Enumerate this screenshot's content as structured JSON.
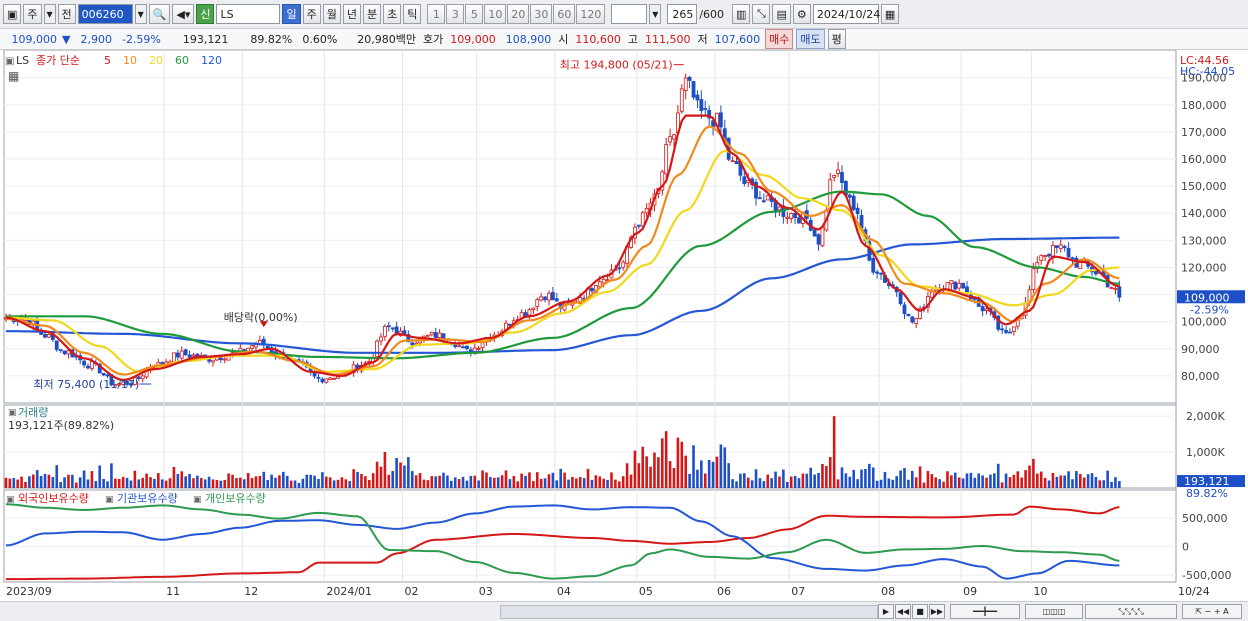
{
  "toolbar": {
    "period_selected": "주",
    "prev_label": "전",
    "code_value": "006260",
    "stock_badge": "신",
    "stock_name": "LS",
    "intervals": [
      "일",
      "주",
      "월",
      "년",
      "분",
      "초",
      "틱"
    ],
    "active_interval": "일",
    "minute_options": [
      "1",
      "3",
      "5",
      "10",
      "20",
      "30",
      "60",
      "120"
    ],
    "count_value": "265",
    "count_max": "/600",
    "date_value": "2024/10/24"
  },
  "quote": {
    "price": "109,000",
    "change": "2,900",
    "change_pct": "-2.59%",
    "volume": "193,121",
    "vol_ratio": "89.82%",
    "turnover_pct": "0.60%",
    "amount": "20,980백만",
    "bid_label": "호가",
    "bid1": "109,000",
    "bid2": "108,900",
    "open_label": "시",
    "open": "110,600",
    "high_label": "고",
    "high": "111,500",
    "low_label": "저",
    "low": "107,600",
    "buy_label": "매수",
    "sell_label": "매도",
    "eval_label": "평"
  },
  "colors": {
    "up": "#d41818",
    "down": "#1d4fc7",
    "ma5": "#d41818",
    "ma10": "#f08a1c",
    "ma20": "#f1d81c",
    "ma60": "#1f9a3b",
    "ma120": "#2457d6",
    "foreign": "#d41818",
    "institution": "#2457d6",
    "individual": "#2d9a4f"
  },
  "chart_data": [
    {
      "type": "candlestick",
      "panel": "price",
      "legend": {
        "code_tag": "LS",
        "series_label": "종가 단순",
        "ma_periods": [
          "5",
          "10",
          "20",
          "60",
          "120"
        ]
      },
      "corner_labels": {
        "lc": "LC:44.56",
        "hc": "HC:-44.05"
      },
      "yticks": [
        80000,
        90000,
        100000,
        110000,
        120000,
        130000,
        140000,
        150000,
        160000,
        170000,
        180000,
        190000
      ],
      "ytick_labels": [
        "80,000",
        "90,000",
        "100,000",
        "110,000",
        "120,000",
        "130,000",
        "140,000",
        "150,000",
        "160,000",
        "170,000",
        "180,000",
        "190,000"
      ],
      "ylim": [
        70000,
        198000
      ],
      "current_price_label": "109,000",
      "current_change_label": "-2.59%",
      "current_price": 109000,
      "annotations": {
        "high": "최고 194,800 (05/21)",
        "low": "최저 75,400 (11/17)",
        "dividend": "배당락(0.00%)"
      },
      "month_ticks": [
        {
          "label": "2023/09",
          "index": 0
        },
        {
          "label": "11",
          "index": 41
        },
        {
          "label": "12",
          "index": 61
        },
        {
          "label": "2024/01",
          "index": 82
        },
        {
          "label": "02",
          "index": 102
        },
        {
          "label": "03",
          "index": 121
        },
        {
          "label": "04",
          "index": 141
        },
        {
          "label": "05",
          "index": 162
        },
        {
          "label": "06",
          "index": 182
        },
        {
          "label": "07",
          "index": 201
        },
        {
          "label": "08",
          "index": 224
        },
        {
          "label": "09",
          "index": 245
        },
        {
          "label": "10",
          "index": 263
        },
        {
          "label": "10/24",
          "index": 300
        }
      ],
      "close_anchors": [
        [
          0,
          101500
        ],
        [
          5,
          101000
        ],
        [
          10,
          95000
        ],
        [
          15,
          89000
        ],
        [
          22,
          84000
        ],
        [
          28,
          77000
        ],
        [
          32,
          77500
        ],
        [
          38,
          84000
        ],
        [
          45,
          88000
        ],
        [
          52,
          86500
        ],
        [
          58,
          88000
        ],
        [
          65,
          92000
        ],
        [
          70,
          88000
        ],
        [
          75,
          84000
        ],
        [
          80,
          79000
        ],
        [
          85,
          80000
        ],
        [
          92,
          84500
        ],
        [
          98,
          98000
        ],
        [
          104,
          93000
        ],
        [
          110,
          95000
        ],
        [
          114,
          93000
        ],
        [
          118,
          89000
        ],
        [
          125,
          95500
        ],
        [
          132,
          103000
        ],
        [
          138,
          110000
        ],
        [
          143,
          105000
        ],
        [
          148,
          110000
        ],
        [
          152,
          116000
        ],
        [
          157,
          120000
        ],
        [
          162,
          137000
        ],
        [
          166,
          145000
        ],
        [
          170,
          166000
        ],
        [
          174,
          188000
        ],
        [
          178,
          177000
        ],
        [
          182,
          174000
        ],
        [
          186,
          158000
        ],
        [
          190,
          150000
        ],
        [
          195,
          144000
        ],
        [
          200,
          140000
        ],
        [
          205,
          138000
        ],
        [
          208,
          130000
        ],
        [
          212,
          155000
        ],
        [
          217,
          143000
        ],
        [
          222,
          120000
        ],
        [
          227,
          113000
        ],
        [
          232,
          100000
        ],
        [
          238,
          113000
        ],
        [
          244,
          114000
        ],
        [
          250,
          105000
        ],
        [
          256,
          95000
        ],
        [
          260,
          104000
        ],
        [
          265,
          125000
        ],
        [
          270,
          127000
        ],
        [
          275,
          121000
        ],
        [
          280,
          118000
        ],
        [
          283,
          113000
        ],
        [
          285,
          109000
        ]
      ],
      "ma5_anchors": [
        [
          0,
          101500
        ],
        [
          10,
          96500
        ],
        [
          20,
          86500
        ],
        [
          30,
          78500
        ],
        [
          38,
          82500
        ],
        [
          50,
          87000
        ],
        [
          60,
          88000
        ],
        [
          68,
          90000
        ],
        [
          78,
          81500
        ],
        [
          86,
          80000
        ],
        [
          94,
          85000
        ],
        [
          100,
          95500
        ],
        [
          106,
          94000
        ],
        [
          116,
          92000
        ],
        [
          124,
          94000
        ],
        [
          134,
          102000
        ],
        [
          144,
          107500
        ],
        [
          154,
          117000
        ],
        [
          162,
          133000
        ],
        [
          168,
          150000
        ],
        [
          174,
          176000
        ],
        [
          180,
          176000
        ],
        [
          186,
          162000
        ],
        [
          192,
          150000
        ],
        [
          200,
          142000
        ],
        [
          208,
          134000
        ],
        [
          214,
          148000
        ],
        [
          220,
          128000
        ],
        [
          228,
          112000
        ],
        [
          234,
          104000
        ],
        [
          240,
          112000
        ],
        [
          248,
          109000
        ],
        [
          256,
          99000
        ],
        [
          262,
          104000
        ],
        [
          268,
          124000
        ],
        [
          276,
          122000
        ],
        [
          285,
          113000
        ]
      ],
      "ma10_anchors": [
        [
          0,
          101000
        ],
        [
          10,
          98500
        ],
        [
          20,
          88500
        ],
        [
          30,
          80500
        ],
        [
          40,
          84000
        ],
        [
          52,
          87000
        ],
        [
          64,
          89000
        ],
        [
          74,
          85500
        ],
        [
          84,
          80500
        ],
        [
          94,
          83500
        ],
        [
          102,
          93000
        ],
        [
          112,
          93500
        ],
        [
          122,
          92500
        ],
        [
          134,
          100500
        ],
        [
          146,
          107000
        ],
        [
          156,
          115500
        ],
        [
          164,
          128000
        ],
        [
          172,
          154000
        ],
        [
          180,
          172000
        ],
        [
          188,
          162000
        ],
        [
          196,
          148000
        ],
        [
          206,
          139000
        ],
        [
          214,
          143000
        ],
        [
          222,
          130000
        ],
        [
          230,
          114000
        ],
        [
          240,
          110500
        ],
        [
          250,
          107000
        ],
        [
          258,
          100000
        ],
        [
          266,
          114000
        ],
        [
          276,
          123000
        ],
        [
          285,
          116000
        ]
      ],
      "ma20_anchors": [
        [
          0,
          101500
        ],
        [
          12,
          100500
        ],
        [
          24,
          91000
        ],
        [
          34,
          81500
        ],
        [
          46,
          85500
        ],
        [
          58,
          87500
        ],
        [
          70,
          87500
        ],
        [
          82,
          81500
        ],
        [
          94,
          82500
        ],
        [
          106,
          91500
        ],
        [
          118,
          92000
        ],
        [
          130,
          96000
        ],
        [
          142,
          103000
        ],
        [
          154,
          111000
        ],
        [
          164,
          121000
        ],
        [
          174,
          141000
        ],
        [
          184,
          163000
        ],
        [
          194,
          154000
        ],
        [
          204,
          145500
        ],
        [
          214,
          141000
        ],
        [
          224,
          124500
        ],
        [
          234,
          113000
        ],
        [
          246,
          110500
        ],
        [
          258,
          106000
        ],
        [
          268,
          110000
        ],
        [
          278,
          119000
        ],
        [
          285,
          120000
        ]
      ],
      "ma60_anchors": [
        [
          0,
          102000
        ],
        [
          20,
          102000
        ],
        [
          40,
          95500
        ],
        [
          60,
          89000
        ],
        [
          80,
          87000
        ],
        [
          100,
          86500
        ],
        [
          120,
          88500
        ],
        [
          140,
          94000
        ],
        [
          160,
          105000
        ],
        [
          178,
          128000
        ],
        [
          196,
          140500
        ],
        [
          214,
          148000
        ],
        [
          224,
          147000
        ],
        [
          236,
          139000
        ],
        [
          248,
          127500
        ],
        [
          264,
          120000
        ],
        [
          276,
          116500
        ],
        [
          285,
          114000
        ]
      ],
      "ma120_anchors": [
        [
          0,
          96500
        ],
        [
          30,
          95500
        ],
        [
          60,
          92000
        ],
        [
          90,
          88500
        ],
        [
          110,
          88500
        ],
        [
          140,
          89500
        ],
        [
          160,
          95000
        ],
        [
          178,
          104000
        ],
        [
          196,
          116000
        ],
        [
          214,
          123000
        ],
        [
          232,
          128500
        ],
        [
          256,
          130500
        ],
        [
          285,
          131000
        ]
      ]
    },
    {
      "type": "bar",
      "panel": "volume",
      "title": "거래량",
      "current_label": "193,121주(89.82%)",
      "yticks": [
        1000000,
        2000000
      ],
      "ytick_labels": [
        "1,000K",
        "2,000K"
      ],
      "ylim": [
        0,
        2200000
      ],
      "current_value_label": "193,121",
      "current_ratio_label": "89.82%",
      "current_value": 193121
    },
    {
      "type": "line",
      "panel": "holdings",
      "series_labels": [
        "외국인보유수량",
        "기관보유수량",
        "개인보유수량"
      ],
      "yticks": [
        -500000,
        0,
        500000
      ],
      "ytick_labels": [
        "-500,000",
        "0",
        "500,000"
      ],
      "ylim": [
        -620000,
        920000
      ],
      "foreign_anchors": [
        [
          0,
          -570000
        ],
        [
          20,
          -560000
        ],
        [
          40,
          -530000
        ],
        [
          60,
          -470000
        ],
        [
          75,
          -450000
        ],
        [
          80,
          -280000
        ],
        [
          95,
          -280000
        ],
        [
          100,
          -120000
        ],
        [
          110,
          120000
        ],
        [
          130,
          220000
        ],
        [
          150,
          150000
        ],
        [
          160,
          100000
        ],
        [
          170,
          50000
        ],
        [
          180,
          80000
        ],
        [
          190,
          150000
        ],
        [
          200,
          300000
        ],
        [
          210,
          540000
        ],
        [
          220,
          520000
        ],
        [
          240,
          510000
        ],
        [
          258,
          560000
        ],
        [
          262,
          700000
        ],
        [
          270,
          650000
        ],
        [
          280,
          580000
        ],
        [
          285,
          690000
        ]
      ],
      "institution_anchors": [
        [
          0,
          20000
        ],
        [
          10,
          230000
        ],
        [
          20,
          260000
        ],
        [
          30,
          250000
        ],
        [
          40,
          120000
        ],
        [
          50,
          220000
        ],
        [
          60,
          330000
        ],
        [
          70,
          450000
        ],
        [
          80,
          460000
        ],
        [
          90,
          380000
        ],
        [
          100,
          310000
        ],
        [
          110,
          420000
        ],
        [
          120,
          580000
        ],
        [
          130,
          700000
        ],
        [
          140,
          720000
        ],
        [
          150,
          650000
        ],
        [
          160,
          690000
        ],
        [
          170,
          680000
        ],
        [
          178,
          440000
        ],
        [
          186,
          180000
        ],
        [
          196,
          -200000
        ],
        [
          210,
          -390000
        ],
        [
          220,
          -420000
        ],
        [
          230,
          -330000
        ],
        [
          240,
          -220000
        ],
        [
          250,
          -350000
        ],
        [
          256,
          -560000
        ],
        [
          264,
          -470000
        ],
        [
          272,
          -250000
        ],
        [
          285,
          -330000
        ]
      ],
      "individual_anchors": [
        [
          0,
          740000
        ],
        [
          10,
          680000
        ],
        [
          20,
          640000
        ],
        [
          30,
          680000
        ],
        [
          40,
          720000
        ],
        [
          50,
          650000
        ],
        [
          60,
          560000
        ],
        [
          70,
          490000
        ],
        [
          80,
          590000
        ],
        [
          90,
          530000
        ],
        [
          98,
          -60000
        ],
        [
          110,
          -80000
        ],
        [
          120,
          -270000
        ],
        [
          130,
          -460000
        ],
        [
          140,
          -560000
        ],
        [
          150,
          -520000
        ],
        [
          160,
          -330000
        ],
        [
          165,
          -120000
        ],
        [
          170,
          -50000
        ],
        [
          180,
          -180000
        ],
        [
          190,
          -210000
        ],
        [
          200,
          -100000
        ],
        [
          210,
          120000
        ],
        [
          220,
          -110000
        ],
        [
          230,
          -50000
        ],
        [
          240,
          -40000
        ],
        [
          250,
          10000
        ],
        [
          260,
          -80000
        ],
        [
          270,
          -100000
        ],
        [
          280,
          -140000
        ],
        [
          285,
          -250000
        ]
      ]
    }
  ]
}
